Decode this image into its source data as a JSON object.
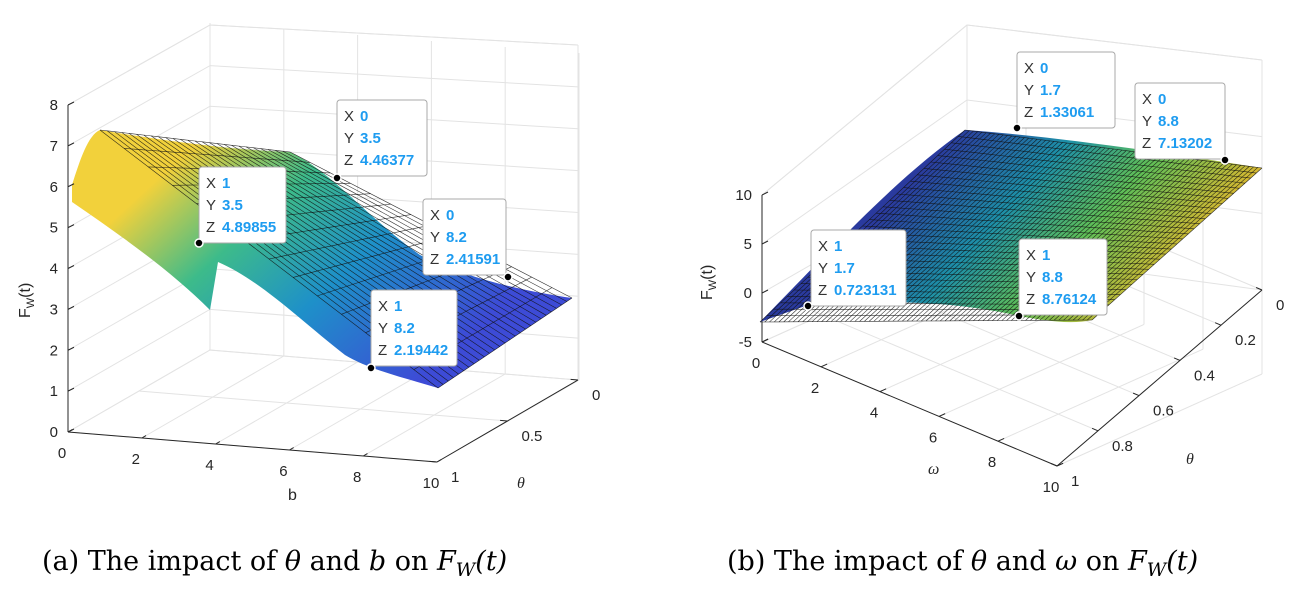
{
  "chart_data": [
    {
      "type": "surface",
      "title": "",
      "caption": {
        "prefix": "(a)  The impact of ",
        "sym1": "θ",
        "mid": " and ",
        "sym2": "b",
        "on": " on ",
        "fn": "F",
        "sub": "W",
        "arg": "(t)"
      },
      "xlabel": "b",
      "ylabel": "θ",
      "zlabel": "F",
      "zlabel_sub": "W",
      "zlabel_arg": "(t)",
      "x_ticks": [
        "0",
        "2",
        "4",
        "6",
        "8",
        "10"
      ],
      "y_ticks": [
        "0",
        "0.5",
        "1"
      ],
      "z_ticks": [
        "0",
        "1",
        "2",
        "3",
        "4",
        "5",
        "6",
        "7",
        "8"
      ],
      "xlim": [
        0,
        10
      ],
      "ylim": [
        0,
        1
      ],
      "zlim": [
        0,
        8
      ],
      "grid": true,
      "colormap": "parula",
      "datatips": [
        {
          "X": "0",
          "Y": "3.5",
          "Z": "4.46377"
        },
        {
          "X": "1",
          "Y": "3.5",
          "Z": "4.89855"
        },
        {
          "X": "0",
          "Y": "8.2",
          "Z": "2.41591"
        },
        {
          "X": "1",
          "Y": "8.2",
          "Z": "2.19442"
        }
      ]
    },
    {
      "type": "surface",
      "title": "",
      "caption": {
        "prefix": "(b)  The impact of ",
        "sym1": "θ",
        "mid": " and ",
        "sym2": "ω",
        "on": " on ",
        "fn": "F",
        "sub": "W",
        "arg": "(t)"
      },
      "xlabel": "ω",
      "ylabel": "θ",
      "zlabel": "F",
      "zlabel_sub": "W",
      "zlabel_arg": "(t)",
      "x_ticks": [
        "0",
        "2",
        "4",
        "6",
        "8",
        "10"
      ],
      "y_ticks": [
        "0",
        "0.2",
        "0.4",
        "0.6",
        "0.8",
        "1"
      ],
      "z_ticks": [
        "-5",
        "0",
        "5",
        "10"
      ],
      "xlim": [
        0,
        10
      ],
      "ylim": [
        0,
        1
      ],
      "zlim": [
        -5,
        10
      ],
      "grid": true,
      "colormap": "parula",
      "datatips": [
        {
          "X": "0",
          "Y": "1.7",
          "Z": "1.33061"
        },
        {
          "X": "0",
          "Y": "8.8",
          "Z": "7.13202"
        },
        {
          "X": "1",
          "Y": "1.7",
          "Z": "0.723131"
        },
        {
          "X": "1",
          "Y": "8.8",
          "Z": "8.76124"
        }
      ]
    }
  ]
}
